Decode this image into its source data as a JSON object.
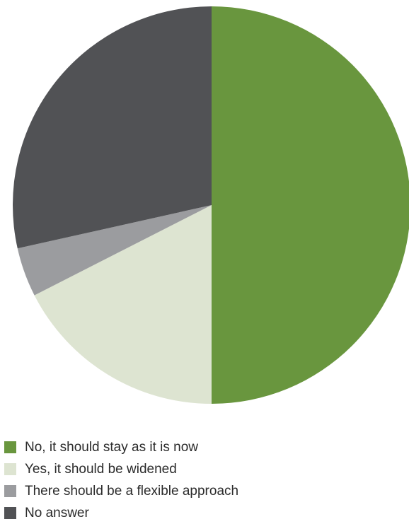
{
  "chart_data": {
    "type": "pie",
    "title": "",
    "slices": [
      {
        "label": "No, it should stay as it is now",
        "value": 50,
        "color": "#69963e"
      },
      {
        "label": "Yes, it should be widened",
        "value": 17.5,
        "color": "#dde4d1"
      },
      {
        "label": "There should be a flexible approach",
        "value": 4,
        "color": "#9b9c9f"
      },
      {
        "label": "No answer",
        "value": 28.5,
        "color": "#515255"
      }
    ],
    "start_angle": "12 o'clock",
    "direction": "clockwise",
    "legend_position": "bottom-left"
  }
}
